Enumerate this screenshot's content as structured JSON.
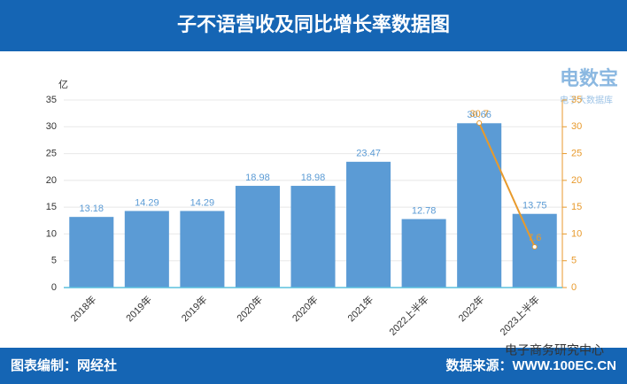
{
  "chart_data": {
    "type": "bar",
    "title": "子不语营收及同比增长率数据图",
    "y_label": "亿",
    "categories": [
      "2018年",
      "2019年",
      "2019年",
      "2020年",
      "2020年",
      "2021年",
      "2022上半年",
      "2022年",
      "2023上半年"
    ],
    "series": [
      {
        "type": "bar",
        "color": "#5b9bd5",
        "values": [
          13.18,
          14.29,
          14.29,
          18.98,
          18.98,
          23.47,
          12.78,
          30.66,
          13.75
        ]
      },
      {
        "type": "line",
        "axis": "y2",
        "color": "#e89a2c",
        "values": [
          null,
          null,
          null,
          null,
          null,
          null,
          null,
          30.7,
          7.6
        ]
      }
    ],
    "ylim": [
      0,
      35
    ],
    "yticks": [
      0,
      5,
      10,
      15,
      20,
      25,
      30,
      35
    ],
    "y2lim": [
      0,
      35
    ],
    "y2ticks": [
      0,
      5,
      10,
      15,
      20,
      25,
      30,
      35
    ],
    "grid": true
  },
  "footer": {
    "credit": "图表编制：网经社",
    "source": "数据来源：WWW.100EC.CN"
  },
  "watermark": "电子商务研究中心",
  "logo": {
    "name": "电数宝",
    "tagline": "电子大数据库"
  }
}
